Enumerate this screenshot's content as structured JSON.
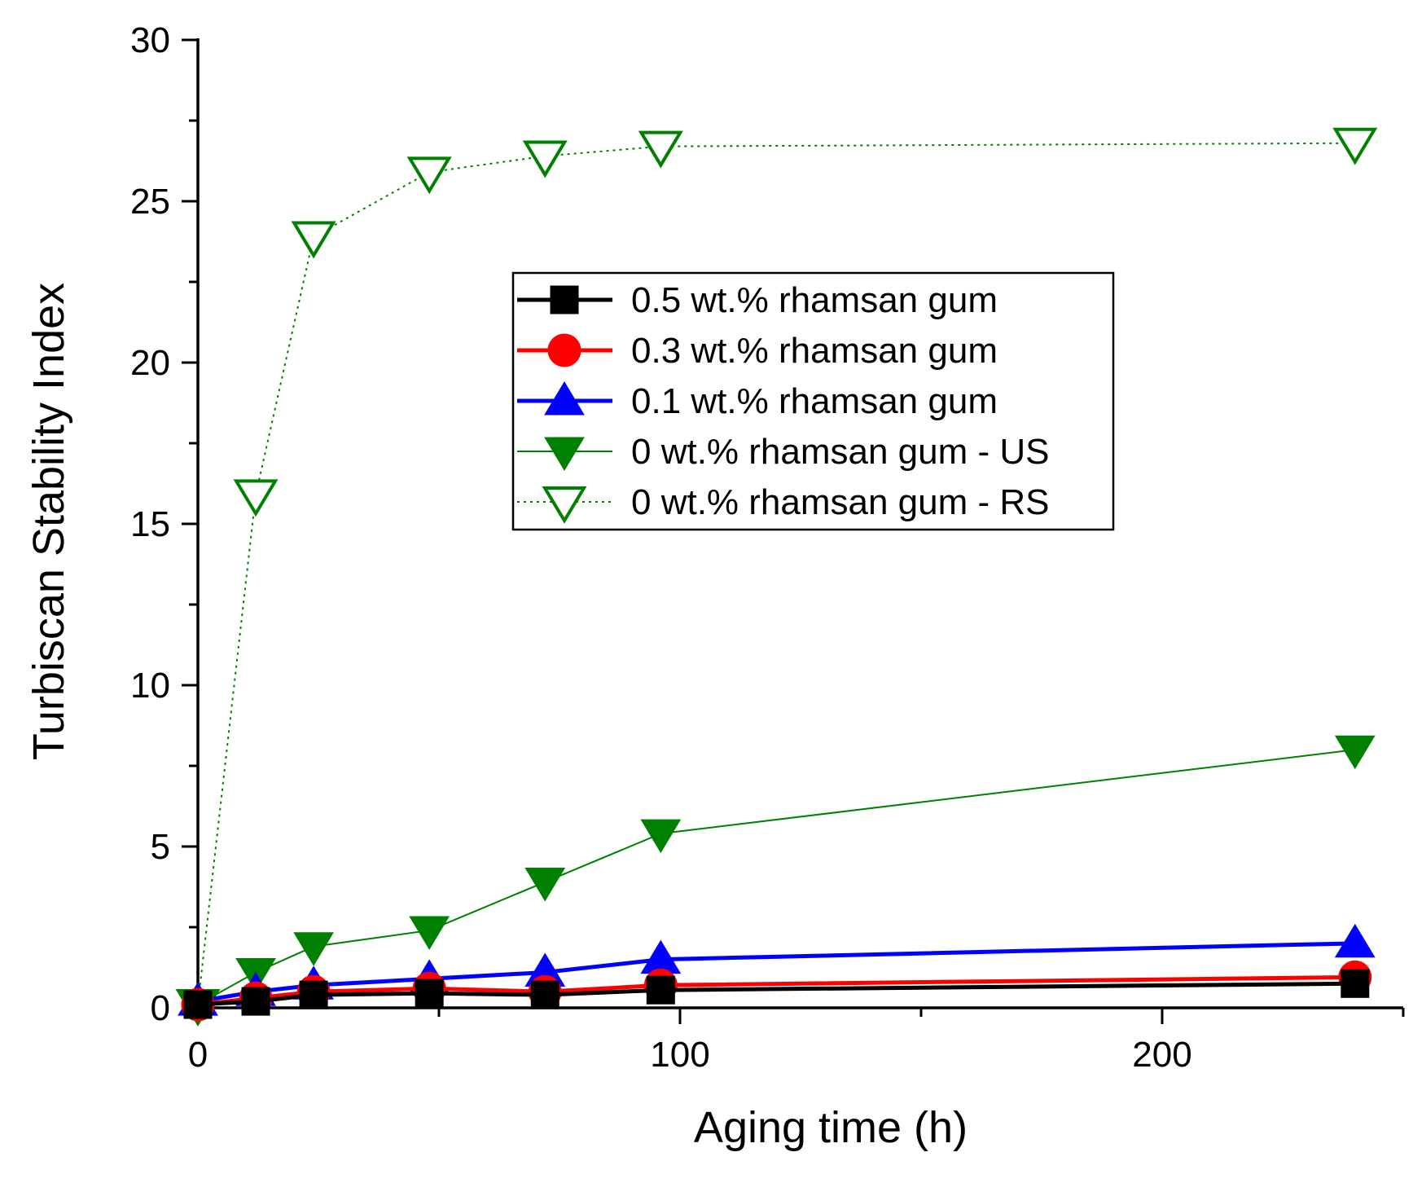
{
  "chart_data": {
    "type": "line",
    "title": "",
    "xlabel": "Aging time (h)",
    "ylabel": "Turbiscan Stability Index",
    "xlim": [
      0,
      250
    ],
    "ylim": [
      0,
      30
    ],
    "x_ticks": [
      0,
      100,
      200
    ],
    "x_minor_ticks": [
      50,
      150,
      250
    ],
    "y_ticks": [
      0,
      5,
      10,
      15,
      20,
      25,
      30
    ],
    "y_minor_ticks": [
      2.5,
      7.5,
      12.5,
      17.5,
      22.5,
      27.5
    ],
    "grid": false,
    "legend_position": "upper-center",
    "series": [
      {
        "name": "0.5 wt.% rhamsan gum",
        "color": "#000000",
        "marker": "square",
        "line_style": "solid",
        "x": [
          0,
          12,
          24,
          48,
          72,
          96,
          240
        ],
        "y": [
          0.1,
          0.2,
          0.4,
          0.45,
          0.4,
          0.55,
          0.75
        ]
      },
      {
        "name": "0.3 wt.% rhamsan gum",
        "color": "#ff0000",
        "marker": "circle",
        "line_style": "solid",
        "x": [
          0,
          12,
          24,
          48,
          72,
          96,
          240
        ],
        "y": [
          0.1,
          0.3,
          0.5,
          0.6,
          0.5,
          0.7,
          0.95
        ]
      },
      {
        "name": "0.1 wt.% rhamsan gum",
        "color": "#0000ff",
        "marker": "triangle-up",
        "line_style": "solid",
        "x": [
          0,
          12,
          24,
          48,
          72,
          96,
          240
        ],
        "y": [
          0.2,
          0.5,
          0.7,
          0.9,
          1.1,
          1.5,
          2.0
        ]
      },
      {
        "name": "0 wt.% rhamsan gum - US",
        "color": "#008000",
        "marker": "triangle-down-filled",
        "line_style": "thin-solid",
        "x": [
          0,
          12,
          24,
          48,
          72,
          96,
          240
        ],
        "y": [
          0.1,
          1.1,
          1.9,
          2.4,
          3.9,
          5.4,
          8.0
        ]
      },
      {
        "name": "0 wt.% rhamsan gum - RS",
        "color": "#008000",
        "marker": "triangle-down-open",
        "line_style": "dotted",
        "x": [
          0,
          12,
          24,
          48,
          72,
          96,
          240
        ],
        "y": [
          0.1,
          15.9,
          23.9,
          25.9,
          26.4,
          26.7,
          26.8
        ]
      }
    ]
  }
}
